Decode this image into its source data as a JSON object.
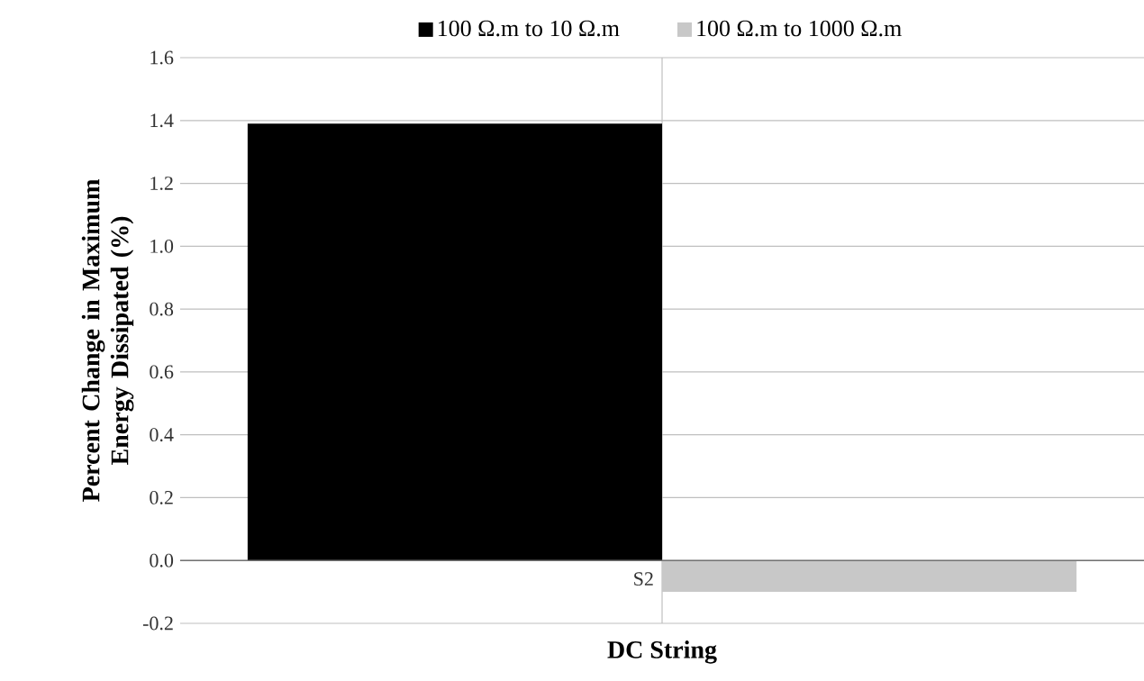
{
  "chart_data": {
    "type": "bar",
    "xlabel": "DC String",
    "ylabel": "Percent Change in Maximum Energy Dissipated (%)",
    "categories": [
      "S2"
    ],
    "series": [
      {
        "name": "100 Ω.m to 10 Ω.m",
        "color": "#000000",
        "values": [
          1.39
        ]
      },
      {
        "name": "100 Ω.m to 1000 Ω.m",
        "color": "#c8c8c8",
        "values": [
          -0.1
        ]
      }
    ],
    "ylim": [
      -0.2,
      1.6
    ],
    "yticks": [
      {
        "value": -0.2,
        "label": "-0.2"
      },
      {
        "value": 0,
        "label": "0.0"
      },
      {
        "value": 0.2,
        "label": "0.2"
      },
      {
        "value": 0.4,
        "label": "0.4"
      },
      {
        "value": 0.6,
        "label": "0.6"
      },
      {
        "value": 0.8,
        "label": "0.8"
      },
      {
        "value": 1.0,
        "label": "1.0"
      },
      {
        "value": 1.2,
        "label": "1.2"
      },
      {
        "value": 1.4,
        "label": "1.4"
      },
      {
        "value": 1.6,
        "label": "1.6"
      }
    ],
    "grid": true,
    "legend": "top"
  }
}
